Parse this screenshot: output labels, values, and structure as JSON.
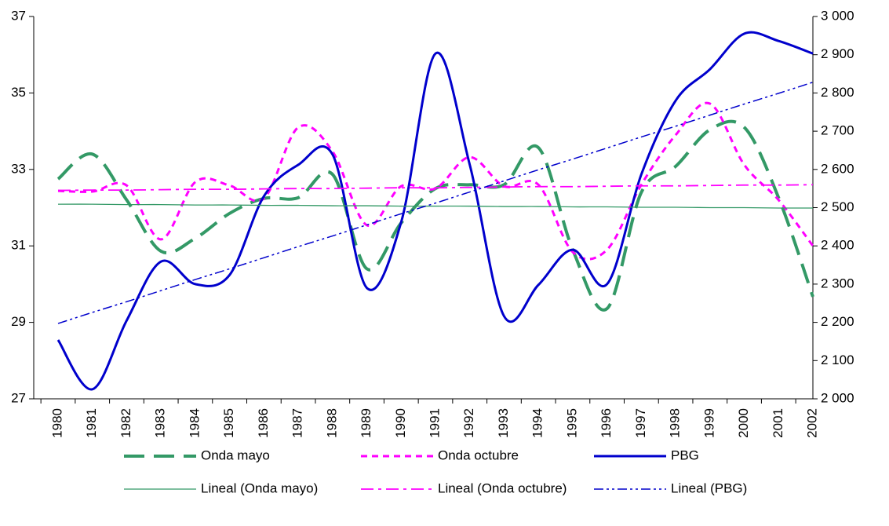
{
  "chart_data": {
    "type": "line",
    "categories": [
      "1980",
      "1981",
      "1982",
      "1983",
      "1984",
      "1985",
      "1986",
      "1987",
      "1988",
      "1989",
      "1990",
      "1991",
      "1992",
      "1993",
      "1994",
      "1995",
      "1996",
      "1997",
      "1998",
      "1999",
      "2000",
      "2001",
      "2002"
    ],
    "ylim": [
      27,
      37
    ],
    "yticks": [
      27,
      29,
      31,
      33,
      35,
      37
    ],
    "y2lim": [
      2000,
      3000
    ],
    "y2ticks": [
      {
        "value": 2000,
        "label": "2 000"
      },
      {
        "value": 2100,
        "label": "2 100"
      },
      {
        "value": 2200,
        "label": "2 200"
      },
      {
        "value": 2300,
        "label": "2 300"
      },
      {
        "value": 2400,
        "label": "2 400"
      },
      {
        "value": 2500,
        "label": "2 500"
      },
      {
        "value": 2600,
        "label": "2 600"
      },
      {
        "value": 2700,
        "label": "2 700"
      },
      {
        "value": 2800,
        "label": "2 800"
      },
      {
        "value": 2900,
        "label": "2 900"
      },
      {
        "value": 3000,
        "label": "3 000"
      }
    ],
    "series": [
      {
        "name": "Onda mayo",
        "color": "#339966",
        "dash": "dashed",
        "values": [
          32.75,
          33.4,
          32.2,
          30.86,
          31.2,
          31.85,
          32.24,
          32.26,
          32.87,
          30.4,
          31.6,
          32.5,
          32.6,
          32.6,
          33.57,
          30.9,
          29.36,
          32.4,
          33.08,
          34.04,
          34.1,
          32.26,
          29.67
        ]
      },
      {
        "name": "Onda octubre",
        "color": "#ff00ff",
        "dash": "dotted",
        "values": [
          32.44,
          32.42,
          32.58,
          31.17,
          32.67,
          32.58,
          32.24,
          34.1,
          33.47,
          31.54,
          32.56,
          32.5,
          33.32,
          32.56,
          32.6,
          30.84,
          30.9,
          32.6,
          33.9,
          34.72,
          33.12,
          32.2,
          31.0
        ]
      },
      {
        "name": "PBG",
        "color": "#0000cc",
        "dash": "solid",
        "axis": "y2",
        "values": [
          2154,
          2025,
          2205,
          2359,
          2300,
          2324,
          2530,
          2612,
          2639,
          2290,
          2462,
          2903,
          2612,
          2216,
          2298,
          2390,
          2300,
          2587,
          2780,
          2862,
          2955,
          2936,
          2903
        ]
      },
      {
        "name": "Lineal (Onda mayo)",
        "color": "#339966",
        "dash": "thin",
        "values": [
          32.09,
          32.09,
          32.08,
          32.08,
          32.07,
          32.07,
          32.06,
          32.06,
          32.05,
          32.05,
          32.04,
          32.04,
          32.04,
          32.03,
          32.03,
          32.02,
          32.02,
          32.01,
          32.01,
          32.0,
          32.0,
          31.99,
          31.99
        ]
      },
      {
        "name": "Lineal (Onda octubre)",
        "color": "#ff00ff",
        "dash": "dashdot",
        "values": [
          32.45,
          32.46,
          32.46,
          32.47,
          32.48,
          32.48,
          32.49,
          32.5,
          32.5,
          32.51,
          32.52,
          32.52,
          32.53,
          32.54,
          32.55,
          32.55,
          32.56,
          32.57,
          32.57,
          32.58,
          32.59,
          32.59,
          32.6
        ]
      },
      {
        "name": "Lineal (PBG)",
        "color": "#0000cc",
        "dash": "dashdotdot",
        "axis": "y2",
        "values": [
          2197,
          2226,
          2254,
          2283,
          2312,
          2340,
          2369,
          2398,
          2426,
          2455,
          2484,
          2512,
          2541,
          2570,
          2599,
          2627,
          2656,
          2685,
          2713,
          2742,
          2771,
          2799,
          2828
        ]
      }
    ]
  }
}
